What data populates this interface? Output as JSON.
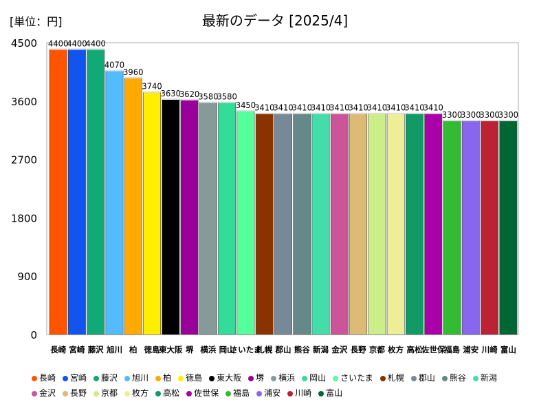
{
  "chart_data": {
    "type": "bar",
    "title": "最新のデータ [2025/4]",
    "unit_label": "[単位：円]",
    "xlabel": "",
    "ylabel": "",
    "ylim": [
      0,
      4500
    ],
    "yticks": [
      0,
      900,
      1800,
      2700,
      3600,
      4500
    ],
    "grid": false,
    "legend_position": "bottom",
    "categories": [
      "長崎",
      "宮崎",
      "藤沢",
      "旭川",
      "柏",
      "徳島",
      "東大阪",
      "堺",
      "横浜",
      "岡山",
      "さいたま",
      "札幌",
      "郡山",
      "熊谷",
      "新潟",
      "金沢",
      "長野",
      "京都",
      "枚方",
      "高松",
      "佐世保",
      "福島",
      "浦安",
      "川崎",
      "富山"
    ],
    "axis_labels": [
      "長崎",
      "宮崎",
      "藤沢",
      "旭川",
      "柏",
      "徳島",
      "東大阪",
      "堺",
      "横浜",
      "岡山",
      "さいたま",
      "札幌",
      "郡山",
      "熊谷",
      "新潟",
      "金沢",
      "長野",
      "京都",
      "枚方",
      "高松",
      "佐世保",
      "福島",
      "浦安",
      "川崎",
      "富山"
    ],
    "values": [
      4400,
      4400,
      4400,
      4070,
      3960,
      3740,
      3630,
      3620,
      3580,
      3580,
      3450,
      3410,
      3410,
      3410,
      3410,
      3410,
      3410,
      3410,
      3410,
      3410,
      3410,
      3300,
      3300,
      3300,
      3300
    ],
    "colors": [
      "#ff5500",
      "#1155ee",
      "#11aa77",
      "#55bbff",
      "#ffaa00",
      "#ffee00",
      "#000000",
      "#990099",
      "#889999",
      "#33dd99",
      "#55ff99",
      "#883300",
      "#778899",
      "#668888",
      "#44ddaa",
      "#cc5599",
      "#ddbb77",
      "#ccee88",
      "#eeee99",
      "#119966",
      "#aa00aa",
      "#33bb33",
      "#8866ee",
      "#bb2233",
      "#006633"
    ]
  }
}
